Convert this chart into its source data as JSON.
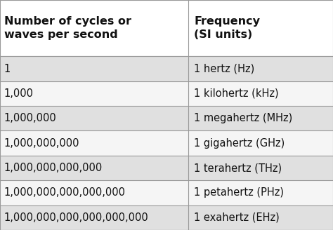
{
  "col1_header": "Number of cycles or\nwaves per second",
  "col2_header": "Frequency\n(SI units)",
  "rows": [
    [
      "1",
      "1 hertz (Hz)"
    ],
    [
      "1,000",
      "1 kilohertz (kHz)"
    ],
    [
      "1,000,000",
      "1 megahertz (MHz)"
    ],
    [
      "1,000,000,000",
      "1 gigahertz (GHz)"
    ],
    [
      "1,000,000,000,000",
      "1 terahertz (THz)"
    ],
    [
      "1,000,000,000,000,000",
      "1 petahertz (PHz)"
    ],
    [
      "1,000,000,000,000,000,000",
      "1 exahertz (EHz)"
    ]
  ],
  "header_bg": "#ffffff",
  "row_bg_light": "#e0e0e0",
  "row_bg_white": "#f5f5f5",
  "border_color": "#999999",
  "text_color": "#111111",
  "header_fontsize": 11.5,
  "row_fontsize": 10.5,
  "col_split": 0.565,
  "fig_width": 4.74,
  "fig_height": 3.28,
  "dpi": 100
}
